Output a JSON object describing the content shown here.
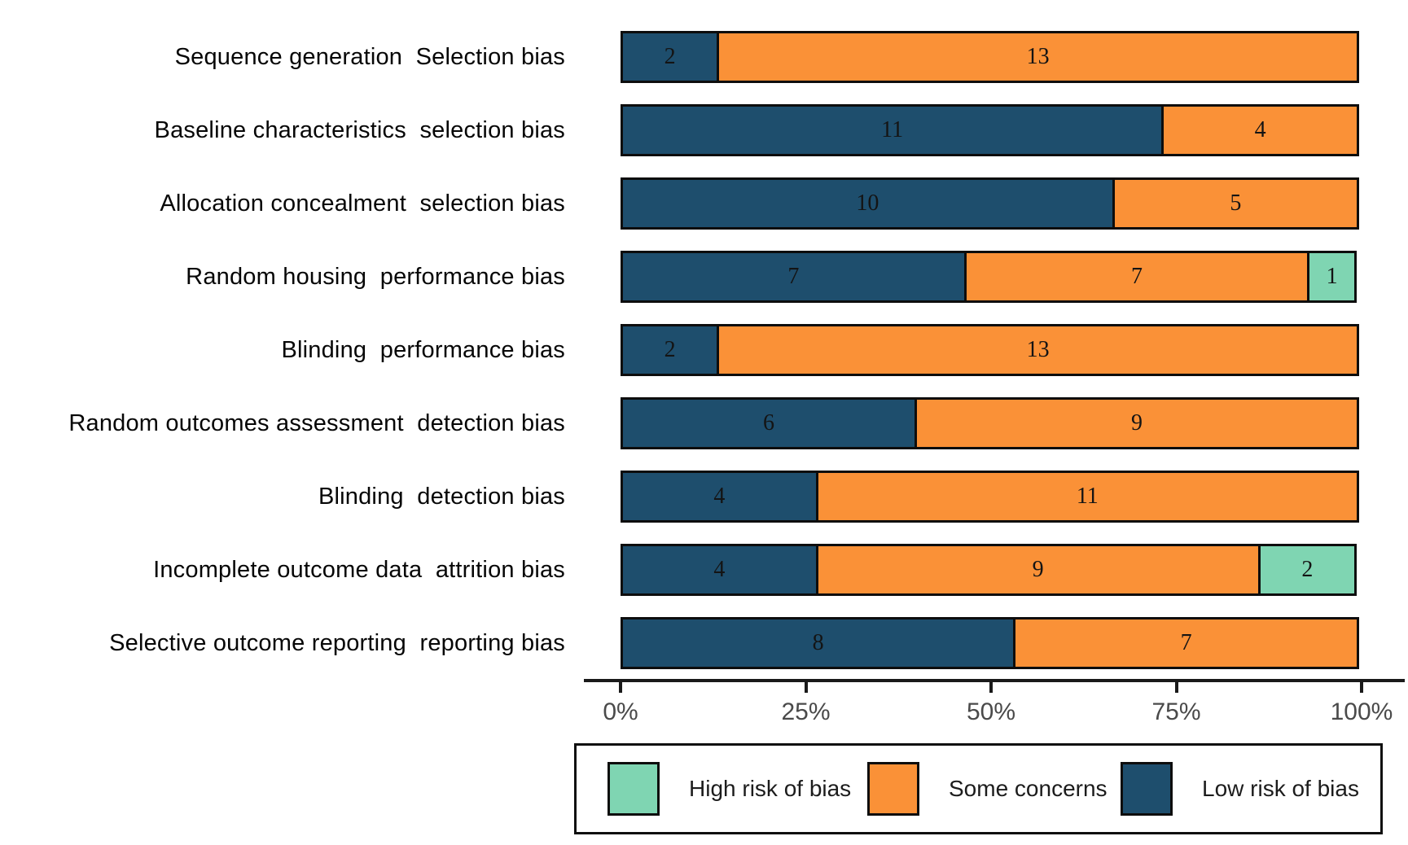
{
  "chart_data": {
    "type": "bar",
    "orientation": "horizontal",
    "stacked": true,
    "title": "",
    "xlabel": "",
    "ylabel": "",
    "grid": false,
    "total_per_category": 15,
    "categories": [
      "Sequence generation  Selection bias",
      "Baseline characteristics  selection bias",
      "Allocation concealment  selection bias",
      "Random housing  performance bias",
      "Blinding  performance bias",
      "Random outcomes assessment  detection bias",
      "Blinding  detection bias",
      "Incomplete outcome data  attrition bias",
      "Selective outcome reporting  reporting bias"
    ],
    "series": [
      {
        "name": "Low risk of bias",
        "color": "#1E4E6D",
        "values": [
          2,
          11,
          10,
          7,
          2,
          6,
          4,
          4,
          8
        ]
      },
      {
        "name": "Some concerns",
        "color": "#FA9137",
        "values": [
          13,
          4,
          5,
          7,
          13,
          9,
          11,
          9,
          7
        ]
      },
      {
        "name": "High risk of bias",
        "color": "#7FD5B2",
        "values": [
          0,
          0,
          0,
          1,
          0,
          0,
          0,
          2,
          0
        ]
      }
    ],
    "x_axis": {
      "ticks": [
        "0%",
        "25%",
        "50%",
        "75%",
        "100%"
      ],
      "min": 0,
      "max": 100,
      "unit": "percent"
    },
    "legend": {
      "position": "bottom",
      "entries": [
        {
          "label": "High risk of bias",
          "color": "#7FD5B2"
        },
        {
          "label": "Some concerns",
          "color": "#FA9137"
        },
        {
          "label": "Low risk of bias",
          "color": "#1E4E6D"
        }
      ]
    }
  }
}
